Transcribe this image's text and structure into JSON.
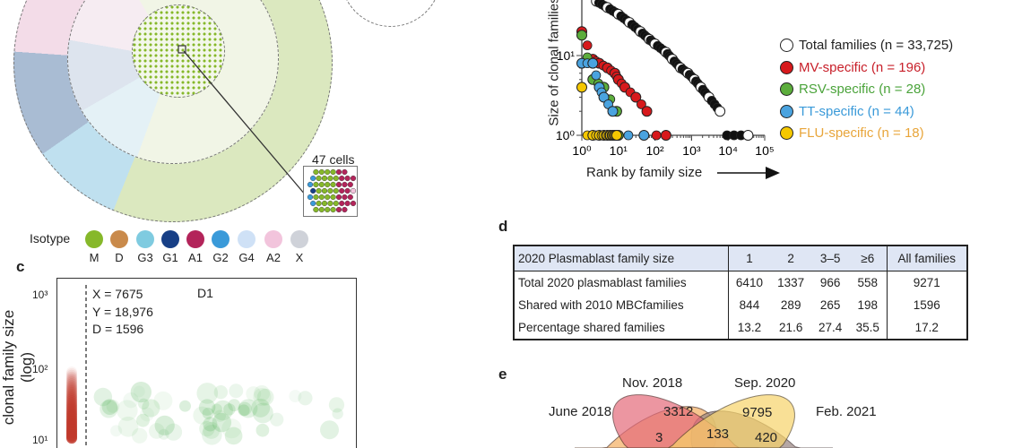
{
  "panel_a": {
    "inset_label": "47 cells",
    "colors": {
      "M": "#86b82a",
      "pink": "#f3dce8",
      "bluegray": "#a9bcd3",
      "lightblue": "#bfe0ef",
      "green_ring": "#dbe8bf"
    }
  },
  "isotype_legend": {
    "title": "Isotype",
    "items": [
      {
        "label": "M",
        "color": "#86b82a"
      },
      {
        "label": "D",
        "color": "#c98a4b"
      },
      {
        "label": "G3",
        "color": "#7fcbe0"
      },
      {
        "label": "G1",
        "color": "#173f86"
      },
      {
        "label": "A1",
        "color": "#b3245a"
      },
      {
        "label": "G2",
        "color": "#3a9ad9"
      },
      {
        "label": "G4",
        "color": "#cfe1f6"
      },
      {
        "label": "A2",
        "color": "#f2c4dc"
      },
      {
        "label": "X",
        "color": "#cfd2d9"
      }
    ]
  },
  "panel_c": {
    "letter": "c",
    "ylabel": "clonal family size (log)",
    "yticks": [
      "10³",
      "10²",
      "10¹"
    ],
    "stats": [
      "X = 7675",
      "Y = 18,976",
      "D = 1596"
    ],
    "title": "D1"
  },
  "chart_data": [
    {
      "type": "scatter",
      "xlabel": "Rank by family size",
      "ylabel": "Size of clonal families",
      "xscale": "log",
      "yscale": "log",
      "xlim": [
        1,
        100000
      ],
      "xticks": [
        "10⁰",
        "10¹",
        "10²",
        "10³",
        "10⁴",
        "10⁵"
      ],
      "yticks": [
        "10⁰",
        "10¹"
      ],
      "legend_position": "right",
      "series": [
        {
          "name": "Total families (n = 33,725)",
          "color": "#ffffff",
          "points": [
            [
              2.5,
              48
            ],
            [
              5,
              40
            ],
            [
              10,
              33
            ],
            [
              20,
              26
            ],
            [
              40,
              20
            ],
            [
              70,
              16
            ],
            [
              100,
              14
            ],
            [
              200,
              11
            ],
            [
              300,
              9
            ],
            [
              500,
              7
            ],
            [
              800,
              6
            ],
            [
              1200,
              5
            ],
            [
              1800,
              4
            ],
            [
              3000,
              3
            ],
            [
              6000,
              2
            ],
            [
              35000,
              1
            ]
          ]
        },
        {
          "name": "MV-specific (n = 196)",
          "color": "#d7191c",
          "points": [
            [
              1,
              20
            ],
            [
              2,
              9
            ],
            [
              3,
              8
            ],
            [
              5,
              7
            ],
            [
              8,
              6
            ],
            [
              10,
              5
            ],
            [
              15,
              4
            ],
            [
              30,
              3
            ],
            [
              60,
              2
            ],
            [
              200,
              1
            ]
          ]
        },
        {
          "name": "RSV-specific (n = 28)",
          "color": "#5cad3c",
          "points": [
            [
              1,
              18
            ],
            [
              2,
              5
            ],
            [
              4,
              4
            ],
            [
              9,
              2
            ],
            [
              10,
              1
            ]
          ]
        },
        {
          "name": "TT-specific (n = 44)",
          "color": "#4aa3df",
          "points": [
            [
              1,
              8
            ],
            [
              2,
              8
            ],
            [
              3,
              4
            ],
            [
              4,
              3
            ],
            [
              7,
              2
            ],
            [
              50,
              1
            ]
          ]
        },
        {
          "name": "FLU-specific (n = 18)",
          "color": "#f5c800",
          "points": [
            [
              1,
              4
            ],
            [
              2,
              1
            ],
            [
              3,
              1
            ],
            [
              4,
              1
            ],
            [
              5,
              1
            ],
            [
              6,
              1
            ],
            [
              7,
              1
            ],
            [
              8,
              1
            ],
            [
              9,
              1
            ]
          ]
        }
      ],
      "legend_text_colors": [
        "#222222",
        "#c8202a",
        "#4aa33a",
        "#3a9ad9",
        "#e8a53a"
      ]
    }
  ],
  "panel_d": {
    "letter": "d",
    "header": [
      "2020 Plasmablast family size",
      "1",
      "2",
      "3–5",
      "≥6",
      "All families"
    ],
    "rows": [
      [
        "Total 2020 plasmablast families",
        "6410",
        "1337",
        "966",
        "558",
        "9271"
      ],
      [
        "Shared with 2010 MBCfamilies",
        "844",
        "289",
        "265",
        "198",
        "1596"
      ],
      [
        "Percentage shared families",
        "13.2",
        "21.6",
        "27.4",
        "35.5",
        "17.2"
      ]
    ]
  },
  "panel_e": {
    "letter": "e",
    "sets": [
      {
        "label": "June 2018",
        "color": "#f5b36a"
      },
      {
        "label": "Nov. 2018",
        "color": "#e56a7a"
      },
      {
        "label": "Sep. 2020",
        "color": "#f7d36a"
      },
      {
        "label": "Feb. 2021",
        "color": "#9d8a87"
      }
    ],
    "counts": [
      "3312",
      "9795",
      "3",
      "133",
      "420"
    ]
  }
}
